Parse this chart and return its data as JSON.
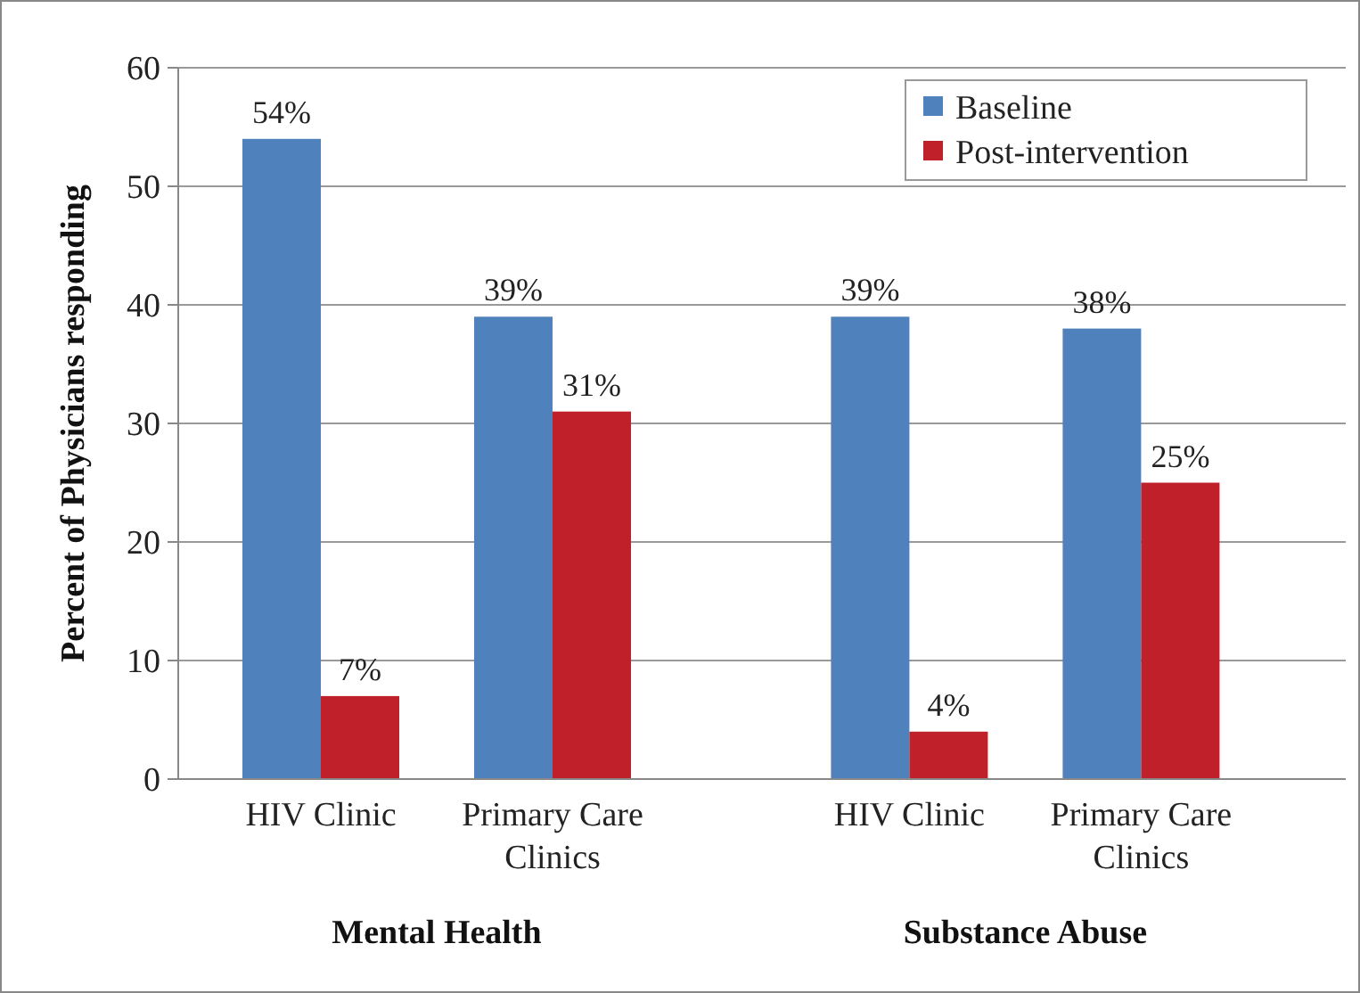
{
  "chart_data": {
    "type": "bar",
    "categories": [
      "HIV Clinic",
      "Primary Care Clinics",
      "HIV Clinic",
      "Primary Care Clinics"
    ],
    "series": [
      {
        "name": "Baseline",
        "color": "#4f81bd",
        "values": [
          54,
          39,
          39,
          38
        ],
        "value_labels": [
          "54%",
          "39%",
          "39%",
          "38%"
        ]
      },
      {
        "name": "Post-intervention",
        "color": "#c0202a",
        "values": [
          7,
          31,
          4,
          25
        ],
        "value_labels": [
          "7%",
          "31%",
          "4%",
          "25%"
        ]
      }
    ],
    "ylabel": "Percent of Physicians responding",
    "ylim": [
      0,
      60
    ],
    "yticks": [
      0,
      10,
      20,
      30,
      40,
      50,
      60
    ],
    "grid": "y",
    "legend": "top right",
    "annotations": [
      "Mental Health",
      "Substance Abuse"
    ]
  }
}
